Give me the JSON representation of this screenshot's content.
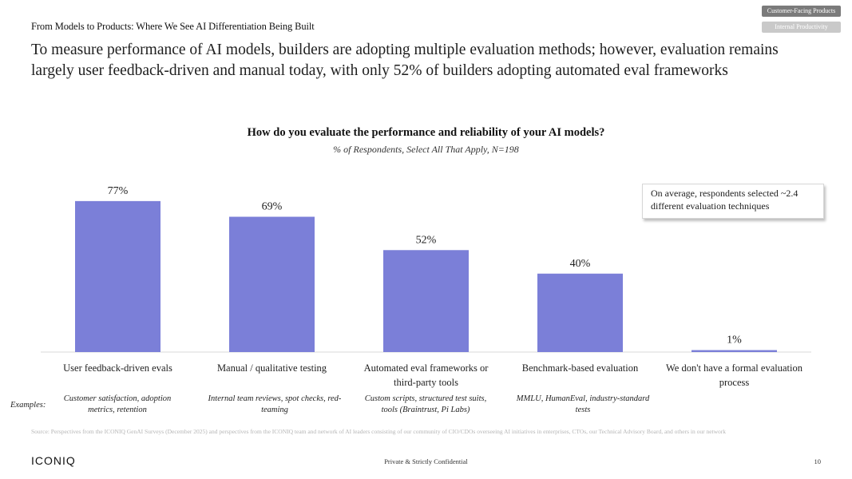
{
  "header": {
    "section_title": "From Models to Products: Where We See AI Differentiation Being Built",
    "headline": "To measure performance of AI models, builders are adopting multiple evaluation methods; however, evaluation remains largely user feedback-driven and manual today, with only 52% of builders adopting automated eval frameworks",
    "nav_tags": [
      {
        "label": "Customer-Facing Products",
        "active": true
      },
      {
        "label": "Internal Productivity",
        "active": false
      }
    ]
  },
  "chart_data": {
    "type": "bar",
    "title": "How do you evaluate the performance and reliability of your AI models?",
    "subtitle": "% of Respondents, Select All That Apply, N=198",
    "categories": [
      [
        "User feedback-driven evals"
      ],
      [
        "Manual / qualitative testing"
      ],
      [
        "Automated eval frameworks or",
        "third-party tools"
      ],
      [
        "Benchmark-based evaluation"
      ],
      [
        "We don't have a formal evaluation",
        "process"
      ]
    ],
    "values": [
      77,
      69,
      52,
      40,
      1
    ],
    "value_labels": [
      "77%",
      "69%",
      "52%",
      "40%",
      "1%"
    ],
    "ylim": [
      0,
      80
    ],
    "bar_color": "#7b7fd8",
    "grid": false,
    "legend": "none"
  },
  "callout": {
    "text": "On average, respondents selected ~2.4 different evaluation techniques"
  },
  "examples": {
    "label": "Examples:",
    "items": [
      "Customer satisfaction, adoption metrics, retention",
      "Internal team reviews, spot checks, red-teaming",
      "Custom scripts, structured test suits, tools (Braintrust, Pi Labs)",
      "MMLU, HumanEval, industry-standard tests"
    ]
  },
  "footer": {
    "source": "Source: Perspectives from the ICONIQ GenAI Surveys (December 2025) and perspectives from the ICONIQ team and network of AI leaders consisting of our community of CIO/CDOs overseeing AI initiatives in enterprises, CTOs, our Technical Advisory Board, and others in our network",
    "logo": "ICONIQ",
    "confidential": "Private & Strictly Confidential",
    "page_number": "10"
  }
}
